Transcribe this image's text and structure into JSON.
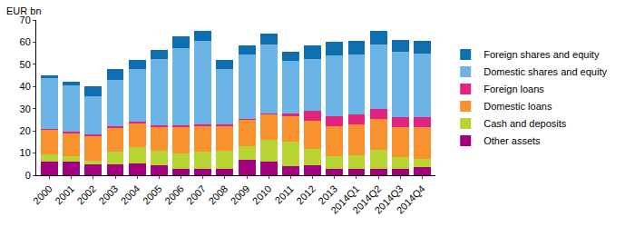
{
  "chart_data": {
    "type": "bar",
    "stacked": true,
    "y_label": "EUR bn",
    "categories": [
      "2000",
      "2001",
      "2002",
      "2003",
      "2004",
      "2005",
      "2006",
      "2007",
      "2008",
      "2009",
      "2010",
      "2011",
      "2012",
      "2013",
      "2014Q1",
      "2014Q2",
      "2014Q3",
      "2014Q4"
    ],
    "series": [
      {
        "name": "Other assets",
        "color": "#a3007f",
        "values": [
          6,
          6,
          5,
          5,
          5.5,
          4.5,
          3,
          3,
          3,
          7,
          6,
          4,
          4.5,
          3,
          3,
          3,
          3,
          3.5
        ]
      },
      {
        "name": "Cash and deposits",
        "color": "#b8d433",
        "values": [
          3.5,
          2.5,
          1.5,
          5.5,
          7,
          6.5,
          7,
          7.5,
          8,
          6,
          10,
          11,
          7.5,
          5.5,
          6,
          8.5,
          5,
          4
        ]
      },
      {
        "name": "Domestic loans",
        "color": "#f7922e",
        "values": [
          11,
          10.5,
          11.5,
          11,
          11,
          11,
          12,
          12,
          11.5,
          12,
          11.5,
          11.5,
          12.5,
          13.5,
          14,
          14,
          13.5,
          14
        ]
      },
      {
        "name": "Foreign loans",
        "color": "#e2237f",
        "values": [
          0.5,
          0.5,
          0.5,
          0.5,
          0.5,
          0.5,
          0.5,
          0.5,
          0.5,
          0.5,
          0.5,
          1.5,
          4.5,
          4.5,
          4.5,
          4.5,
          4.5,
          4.5
        ]
      },
      {
        "name": "Domestic shares and equity",
        "color": "#6cb4e6",
        "values": [
          23,
          21,
          17,
          21,
          24,
          30,
          35,
          37.5,
          25,
          29,
          31,
          23.5,
          23.5,
          27.5,
          27,
          29,
          29.5,
          29
        ]
      },
      {
        "name": "Foreign shares and equity",
        "color": "#0f6fae",
        "values": [
          1,
          1.5,
          4.5,
          5,
          4,
          4,
          5,
          4.5,
          4,
          4,
          5,
          4,
          6,
          6,
          6,
          6,
          5.5,
          5.5
        ]
      }
    ],
    "ylim": [
      0,
      70
    ],
    "yticks": [
      0,
      10,
      20,
      30,
      40,
      50,
      60,
      70
    ],
    "grid": false,
    "legend": "right"
  }
}
